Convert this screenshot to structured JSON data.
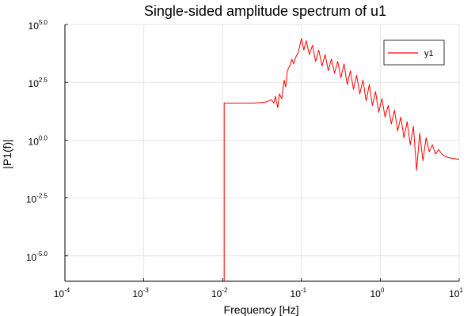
{
  "chart_data": {
    "type": "line",
    "title": "Single-sided amplitude spectrum of u1",
    "xlabel": "Frequency [Hz]",
    "ylabel": "|P1(f)|",
    "x_scale": "log10",
    "y_scale": "log10",
    "xlim_exponent": [
      -4,
      1
    ],
    "ylim_exponent": [
      -6.1,
      5.0
    ],
    "x_ticks": [
      {
        "base": "10",
        "exp": "-4"
      },
      {
        "base": "10",
        "exp": "-3"
      },
      {
        "base": "10",
        "exp": "-2"
      },
      {
        "base": "10",
        "exp": "-1"
      },
      {
        "base": "10",
        "exp": "0"
      },
      {
        "base": "10",
        "exp": "1"
      }
    ],
    "y_ticks": [
      {
        "base": "10",
        "exp": "-5.0",
        "value": -5.0
      },
      {
        "base": "10",
        "exp": "-2.5",
        "value": -2.5
      },
      {
        "base": "10",
        "exp": "0.0",
        "value": 0.0
      },
      {
        "base": "10",
        "exp": "2.5",
        "value": 2.5
      },
      {
        "base": "10",
        "exp": "5.0",
        "value": 5.0
      }
    ],
    "grid": true,
    "legend_position": "top-right",
    "series": [
      {
        "name": "y1",
        "color": "#ff0000",
        "points_log10": [
          [
            -1.98,
            -6.1
          ],
          [
            -1.98,
            1.6
          ],
          [
            -1.6,
            1.6
          ],
          [
            -1.45,
            1.65
          ],
          [
            -1.38,
            1.75
          ],
          [
            -1.35,
            1.6
          ],
          [
            -1.33,
            1.9
          ],
          [
            -1.3,
            1.4
          ],
          [
            -1.28,
            2.0
          ],
          [
            -1.25,
            1.8
          ],
          [
            -1.22,
            2.6
          ],
          [
            -1.2,
            2.3
          ],
          [
            -1.18,
            3.0
          ],
          [
            -1.15,
            3.2
          ],
          [
            -1.12,
            3.5
          ],
          [
            -1.1,
            3.3
          ],
          [
            -1.07,
            3.6
          ],
          [
            -1.04,
            3.8
          ],
          [
            -1.0,
            4.4
          ],
          [
            -0.97,
            3.9
          ],
          [
            -0.94,
            4.3
          ],
          [
            -0.9,
            3.7
          ],
          [
            -0.86,
            4.1
          ],
          [
            -0.82,
            3.4
          ],
          [
            -0.78,
            3.9
          ],
          [
            -0.74,
            3.2
          ],
          [
            -0.7,
            3.7
          ],
          [
            -0.66,
            3.0
          ],
          [
            -0.62,
            3.5
          ],
          [
            -0.58,
            2.9
          ],
          [
            -0.54,
            3.4
          ],
          [
            -0.5,
            2.7
          ],
          [
            -0.46,
            3.3
          ],
          [
            -0.42,
            2.4
          ],
          [
            -0.38,
            3.0
          ],
          [
            -0.34,
            2.2
          ],
          [
            -0.3,
            2.8
          ],
          [
            -0.26,
            2.0
          ],
          [
            -0.22,
            2.6
          ],
          [
            -0.18,
            1.7
          ],
          [
            -0.14,
            2.4
          ],
          [
            -0.1,
            1.5
          ],
          [
            -0.06,
            2.1
          ],
          [
            -0.02,
            1.2
          ],
          [
            0.02,
            1.8
          ],
          [
            0.06,
            1.0
          ],
          [
            0.1,
            1.5
          ],
          [
            0.14,
            0.7
          ],
          [
            0.18,
            1.3
          ],
          [
            0.22,
            0.4
          ],
          [
            0.26,
            1.0
          ],
          [
            0.3,
            0.1
          ],
          [
            0.34,
            0.8
          ],
          [
            0.38,
            -0.2
          ],
          [
            0.42,
            0.6
          ],
          [
            0.46,
            -1.3
          ],
          [
            0.5,
            0.3
          ],
          [
            0.54,
            -0.9
          ],
          [
            0.58,
            0.1
          ],
          [
            0.62,
            -0.5
          ],
          [
            0.66,
            -0.2
          ],
          [
            0.7,
            -0.6
          ],
          [
            0.74,
            -0.4
          ],
          [
            0.78,
            -0.6
          ],
          [
            0.82,
            -0.7
          ],
          [
            0.86,
            -0.75
          ],
          [
            0.9,
            -0.78
          ],
          [
            0.94,
            -0.8
          ],
          [
            0.97,
            -0.82
          ],
          [
            1.0,
            -0.82
          ]
        ]
      }
    ]
  }
}
